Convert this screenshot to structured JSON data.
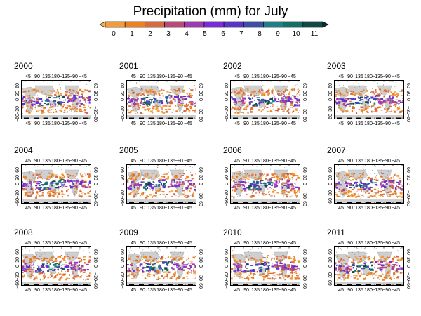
{
  "title": "Precipitation (mm) for July",
  "colorbar": {
    "ticks": [
      "0",
      "1",
      "2",
      "3",
      "4",
      "5",
      "6",
      "7",
      "8",
      "9",
      "10",
      "11"
    ],
    "colors": [
      "#f6ae5a",
      "#f39a3a",
      "#f0801f",
      "#d96a3e",
      "#b94a77",
      "#a03ab2",
      "#7b2cd9",
      "#5a34c9",
      "#3b4fa6",
      "#1f7f85",
      "#137069",
      "#0f4a45",
      "#0a2d2a"
    ]
  },
  "panels": [
    {
      "year": "2000",
      "seed": 11
    },
    {
      "year": "2001",
      "seed": 23
    },
    {
      "year": "2002",
      "seed": 37
    },
    {
      "year": "2003",
      "seed": 41
    },
    {
      "year": "2004",
      "seed": 53
    },
    {
      "year": "2005",
      "seed": 67
    },
    {
      "year": "2006",
      "seed": 71
    },
    {
      "year": "2007",
      "seed": 89
    },
    {
      "year": "2008",
      "seed": 97
    },
    {
      "year": "2009",
      "seed": 103
    },
    {
      "year": "2010",
      "seed": 113
    },
    {
      "year": "2011",
      "seed": 127
    }
  ],
  "lon_labels": [
    "45",
    "90",
    "135",
    "180",
    "−135",
    "−90",
    "−45"
  ],
  "lat_labels_left": [
    "−60",
    "−30",
    "0",
    "30",
    "60"
  ],
  "lat_labels_right": [
    "60",
    "30",
    "0",
    "−30",
    "−60"
  ]
}
